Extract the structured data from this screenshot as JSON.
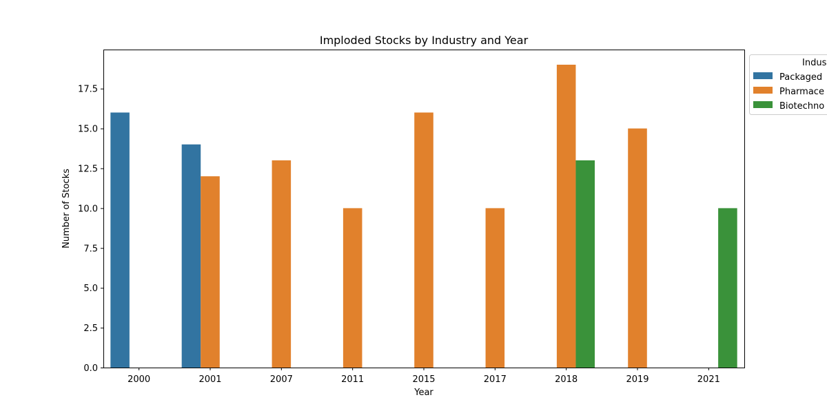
{
  "chart_data": {
    "type": "bar",
    "title": "Imploded Stocks by Industry and Year",
    "xlabel": "Year",
    "ylabel": "Number of Stocks",
    "categories": [
      "2000",
      "2001",
      "2007",
      "2011",
      "2015",
      "2017",
      "2018",
      "2019",
      "2021"
    ],
    "series": [
      {
        "name": "Packaged",
        "color": "#3274a1",
        "values": [
          16,
          14,
          0,
          0,
          0,
          0,
          0,
          0,
          0
        ]
      },
      {
        "name": "Pharmace",
        "color": "#e1812c",
        "values": [
          0,
          12,
          13,
          10,
          16,
          10,
          19,
          15,
          0
        ]
      },
      {
        "name": "Biotechno",
        "color": "#3a923a",
        "values": [
          0,
          0,
          0,
          0,
          0,
          0,
          13,
          0,
          10
        ]
      }
    ],
    "ylim": [
      0,
      19.95
    ],
    "yticks": [
      "0.0",
      "2.5",
      "5.0",
      "7.5",
      "10.0",
      "12.5",
      "15.0",
      "17.5"
    ],
    "legend": {
      "title": "Indus",
      "placement": "outside top-right"
    },
    "grid": false
  }
}
